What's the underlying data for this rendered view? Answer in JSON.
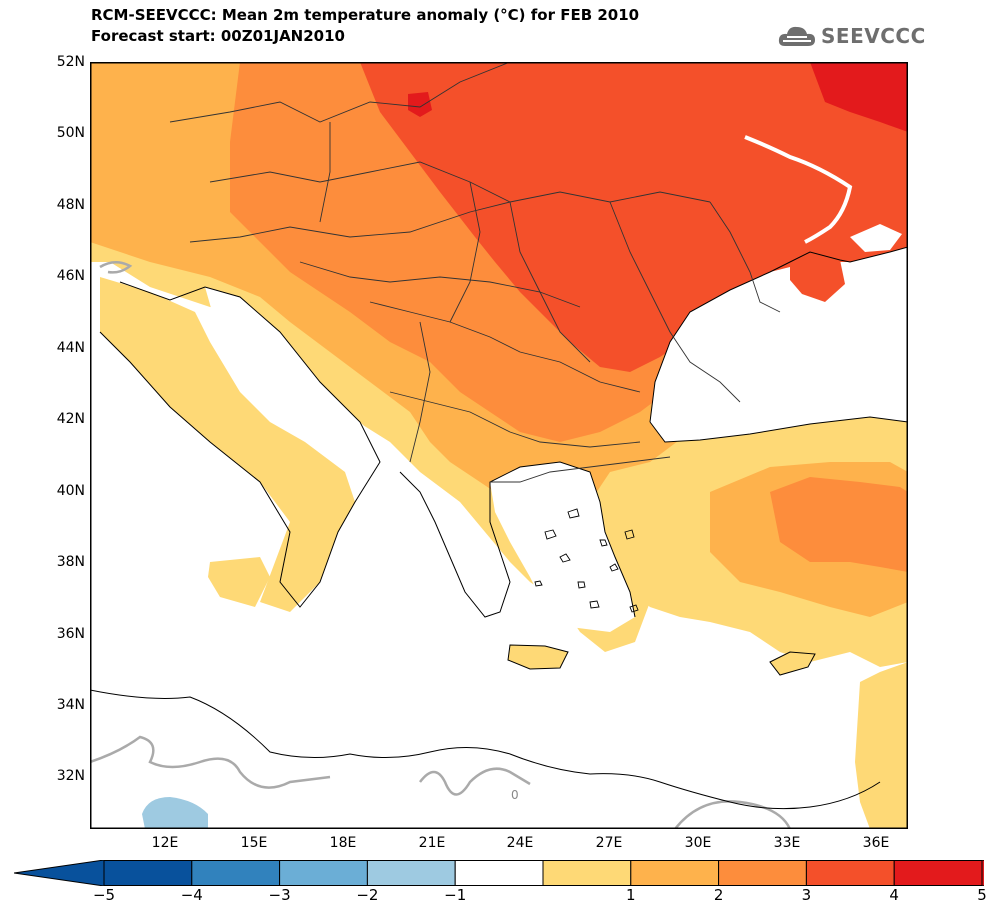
{
  "title": "RCM-SEEVCCC: Mean 2m temperature anomaly (°C) for FEB 2010",
  "subtitle": "Forecast start: 00Z01JAN2010",
  "logo": {
    "text": "SEEVCCC",
    "icon": "cloud-logo-icon"
  },
  "map": {
    "lat_labels": [
      "52N",
      "50N",
      "48N",
      "46N",
      "44N",
      "42N",
      "40N",
      "38N",
      "36N",
      "34N",
      "32N"
    ],
    "lon_labels": [
      "12E",
      "15E",
      "18E",
      "21E",
      "24E",
      "27E",
      "30E",
      "33E",
      "36E"
    ],
    "contour_label": "0",
    "colors": {
      "frame": "#000000",
      "land_1_2": "#fed976",
      "land_2_3": "#feb24c",
      "land_3_4": "#fd8d3c",
      "land_4_5": "#f4502a",
      "land_gt5": "#e31a1c",
      "neg_1_2": "#9ecae1",
      "sea": "#ffffff",
      "zero_contour": "#aaaaaa"
    }
  },
  "colorbar": {
    "labels": [
      "−5",
      "−4",
      "−3",
      "−2",
      "−1",
      "1",
      "2",
      "3",
      "4",
      "5"
    ],
    "colors": [
      "#08519c",
      "#3182bd",
      "#6baed6",
      "#9ecae1",
      "#ffffff",
      "#fed976",
      "#feb24c",
      "#fd8d3c",
      "#f4502a",
      "#e31a1c"
    ]
  }
}
